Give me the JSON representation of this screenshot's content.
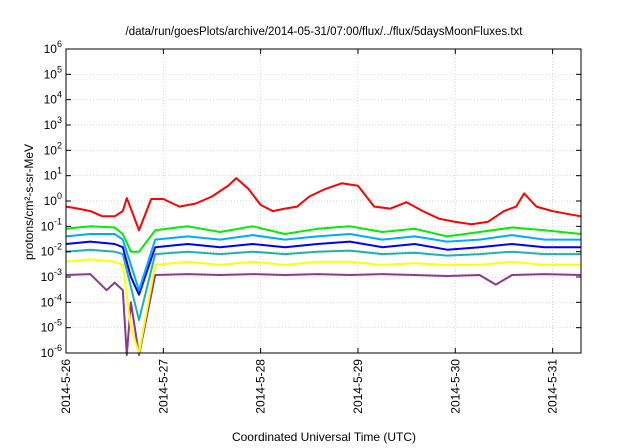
{
  "chart_data": {
    "type": "line",
    "title": "/data/run/goesPlots/archive/2014-05-31/07:00/flux/../flux/5daysMoonFluxes.txt",
    "xlabel": "Coordinated Universal Time (UTC)",
    "ylabel": "protons/cm²-s-sr-MeV",
    "x_range": [
      "2014-05-26T00:00",
      "2014-05-31T07:00"
    ],
    "x_ticks": [
      "2014-5-26",
      "2014-5-27",
      "2014-5-28",
      "2014-5-29",
      "2014-5-30",
      "2014-5-31"
    ],
    "y_scale": "log",
    "ylim": [
      1e-06,
      1000000.0
    ],
    "y_ticks": [
      {
        "base": "10",
        "exp": "-6"
      },
      {
        "base": "10",
        "exp": "-5"
      },
      {
        "base": "10",
        "exp": "-4"
      },
      {
        "base": "10",
        "exp": "-3"
      },
      {
        "base": "10",
        "exp": "-2"
      },
      {
        "base": "10",
        "exp": "-1"
      },
      {
        "base": "10",
        "exp": "0"
      },
      {
        "base": "10",
        "exp": "1"
      },
      {
        "base": "10",
        "exp": "2"
      },
      {
        "base": "10",
        "exp": "3"
      },
      {
        "base": "10",
        "exp": "4"
      },
      {
        "base": "10",
        "exp": "5"
      },
      {
        "base": "10",
        "exp": "6"
      }
    ],
    "grid": true,
    "series": [
      {
        "color": "#ff0000",
        "x": [
          "2014-05-26T00:00",
          "2014-05-26T03:00",
          "2014-05-26T06:00",
          "2014-05-26T09:00",
          "2014-05-26T12:00",
          "2014-05-26T14:00",
          "2014-05-26T15:00",
          "2014-05-26T16:00",
          "2014-05-26T18:00",
          "2014-05-26T21:00",
          "2014-05-27T00:00",
          "2014-05-27T04:00",
          "2014-05-27T08:00",
          "2014-05-27T12:00",
          "2014-05-27T16:00",
          "2014-05-27T18:00",
          "2014-05-27T21:00",
          "2014-05-28T00:00",
          "2014-05-28T03:00",
          "2014-05-28T06:00",
          "2014-05-28T09:00",
          "2014-05-28T12:00",
          "2014-05-28T16:00",
          "2014-05-28T20:00",
          "2014-05-29T00:00",
          "2014-05-29T04:00",
          "2014-05-29T08:00",
          "2014-05-29T12:00",
          "2014-05-29T16:00",
          "2014-05-29T20:00",
          "2014-05-30T00:00",
          "2014-05-30T04:00",
          "2014-05-30T08:00",
          "2014-05-30T12:00",
          "2014-05-30T15:00",
          "2014-05-30T17:00",
          "2014-05-30T20:00",
          "2014-05-31T00:00",
          "2014-05-31T04:00",
          "2014-05-31T07:00"
        ],
        "y": [
          0.6,
          0.5,
          0.4,
          0.25,
          0.25,
          0.4,
          1.3,
          0.5,
          0.07,
          1.2,
          1.2,
          0.6,
          0.8,
          1.5,
          4,
          8,
          3,
          0.7,
          0.4,
          0.5,
          0.6,
          1.5,
          3,
          5,
          4,
          0.6,
          0.5,
          0.9,
          0.4,
          0.2,
          0.15,
          0.12,
          0.15,
          0.4,
          0.6,
          2,
          0.6,
          0.4,
          0.3,
          0.25
        ]
      },
      {
        "color": "#00ee00",
        "x": [
          "2014-05-26T00:00",
          "2014-05-26T06:00",
          "2014-05-26T12:00",
          "2014-05-26T14:00",
          "2014-05-26T16:00",
          "2014-05-26T18:00",
          "2014-05-26T22:00",
          "2014-05-27T06:00",
          "2014-05-27T14:00",
          "2014-05-27T22:00",
          "2014-05-28T06:00",
          "2014-05-28T14:00",
          "2014-05-28T22:00",
          "2014-05-29T06:00",
          "2014-05-29T14:00",
          "2014-05-29T22:00",
          "2014-05-30T06:00",
          "2014-05-30T14:00",
          "2014-05-30T22:00",
          "2014-05-31T07:00"
        ],
        "y": [
          0.08,
          0.1,
          0.09,
          0.05,
          0.01,
          0.01,
          0.07,
          0.1,
          0.06,
          0.1,
          0.05,
          0.08,
          0.1,
          0.06,
          0.08,
          0.04,
          0.06,
          0.09,
          0.07,
          0.05
        ]
      },
      {
        "color": "#00aaff",
        "x": [
          "2014-05-26T00:00",
          "2014-05-26T06:00",
          "2014-05-26T12:00",
          "2014-05-26T14:00",
          "2014-05-26T16:00",
          "2014-05-26T18:00",
          "2014-05-26T22:00",
          "2014-05-27T06:00",
          "2014-05-27T14:00",
          "2014-05-27T22:00",
          "2014-05-28T06:00",
          "2014-05-28T14:00",
          "2014-05-28T22:00",
          "2014-05-29T06:00",
          "2014-05-29T14:00",
          "2014-05-29T22:00",
          "2014-05-30T06:00",
          "2014-05-30T14:00",
          "2014-05-30T22:00",
          "2014-05-31T07:00"
        ],
        "y": [
          0.04,
          0.05,
          0.05,
          0.03,
          0.003,
          0.0003,
          0.03,
          0.04,
          0.03,
          0.045,
          0.03,
          0.04,
          0.05,
          0.03,
          0.04,
          0.025,
          0.03,
          0.045,
          0.03,
          0.03
        ]
      },
      {
        "color": "#0000ff",
        "x": [
          "2014-05-26T00:00",
          "2014-05-26T06:00",
          "2014-05-26T12:00",
          "2014-05-26T14:00",
          "2014-05-26T16:00",
          "2014-05-26T18:00",
          "2014-05-26T22:00",
          "2014-05-27T06:00",
          "2014-05-27T14:00",
          "2014-05-27T22:00",
          "2014-05-28T06:00",
          "2014-05-28T14:00",
          "2014-05-28T22:00",
          "2014-05-29T06:00",
          "2014-05-29T14:00",
          "2014-05-29T22:00",
          "2014-05-30T06:00",
          "2014-05-30T14:00",
          "2014-05-30T22:00",
          "2014-05-31T07:00"
        ],
        "y": [
          0.02,
          0.025,
          0.02,
          0.015,
          0.001,
          0.0002,
          0.015,
          0.02,
          0.015,
          0.02,
          0.015,
          0.02,
          0.025,
          0.015,
          0.02,
          0.012,
          0.015,
          0.02,
          0.015,
          0.015
        ]
      },
      {
        "color": "#20b2aa",
        "x": [
          "2014-05-26T00:00",
          "2014-05-26T06:00",
          "2014-05-26T12:00",
          "2014-05-26T14:00",
          "2014-05-26T16:00",
          "2014-05-26T18:00",
          "2014-05-26T22:00",
          "2014-05-27T06:00",
          "2014-05-27T14:00",
          "2014-05-27T22:00",
          "2014-05-28T06:00",
          "2014-05-28T14:00",
          "2014-05-28T22:00",
          "2014-05-29T06:00",
          "2014-05-29T14:00",
          "2014-05-29T22:00",
          "2014-05-30T06:00",
          "2014-05-30T14:00",
          "2014-05-30T22:00",
          "2014-05-31T07:00"
        ],
        "y": [
          0.01,
          0.012,
          0.01,
          0.008,
          0.0004,
          2e-05,
          0.008,
          0.01,
          0.008,
          0.01,
          0.008,
          0.01,
          0.011,
          0.008,
          0.009,
          0.007,
          0.008,
          0.01,
          0.008,
          0.008
        ]
      },
      {
        "color": "#ffff00",
        "x": [
          "2014-05-26T00:00",
          "2014-05-26T06:00",
          "2014-05-26T12:00",
          "2014-05-26T14:00",
          "2014-05-26T16:00",
          "2014-05-26T18:00",
          "2014-05-26T22:00",
          "2014-05-27T06:00",
          "2014-05-27T14:00",
          "2014-05-27T22:00",
          "2014-05-28T06:00",
          "2014-05-28T14:00",
          "2014-05-28T22:00",
          "2014-05-29T06:00",
          "2014-05-29T14:00",
          "2014-05-29T22:00",
          "2014-05-30T06:00",
          "2014-05-30T14:00",
          "2014-05-30T22:00",
          "2014-05-31T07:00"
        ],
        "y": [
          0.004,
          0.005,
          0.004,
          0.003,
          1e-05,
          1e-06,
          0.003,
          0.004,
          0.003,
          0.004,
          0.003,
          0.004,
          0.004,
          0.003,
          0.0035,
          0.003,
          0.003,
          0.004,
          0.003,
          0.003
        ]
      },
      {
        "color": "#8b3a8b",
        "x": [
          "2014-05-26T00:00",
          "2014-05-26T06:00",
          "2014-05-26T10:00",
          "2014-05-26T12:00",
          "2014-05-26T14:00",
          "2014-05-26T15:00",
          "2014-05-26T16:00",
          "2014-05-26T18:00",
          "2014-05-26T22:00",
          "2014-05-27T06:00",
          "2014-05-27T14:00",
          "2014-05-27T22:00",
          "2014-05-28T06:00",
          "2014-05-28T14:00",
          "2014-05-28T22:00",
          "2014-05-29T06:00",
          "2014-05-29T14:00",
          "2014-05-29T22:00",
          "2014-05-30T06:00",
          "2014-05-30T10:00",
          "2014-05-30T14:00",
          "2014-05-30T22:00",
          "2014-05-31T07:00"
        ],
        "y": [
          0.0012,
          0.0013,
          0.0003,
          0.0006,
          0.0003,
          8e-07,
          0.0001,
          5e-07,
          0.0012,
          0.0013,
          0.0012,
          0.0013,
          0.0012,
          0.0013,
          0.0012,
          0.0013,
          0.0012,
          0.0011,
          0.0012,
          0.0005,
          0.0012,
          0.0013,
          0.0012
        ]
      }
    ]
  }
}
